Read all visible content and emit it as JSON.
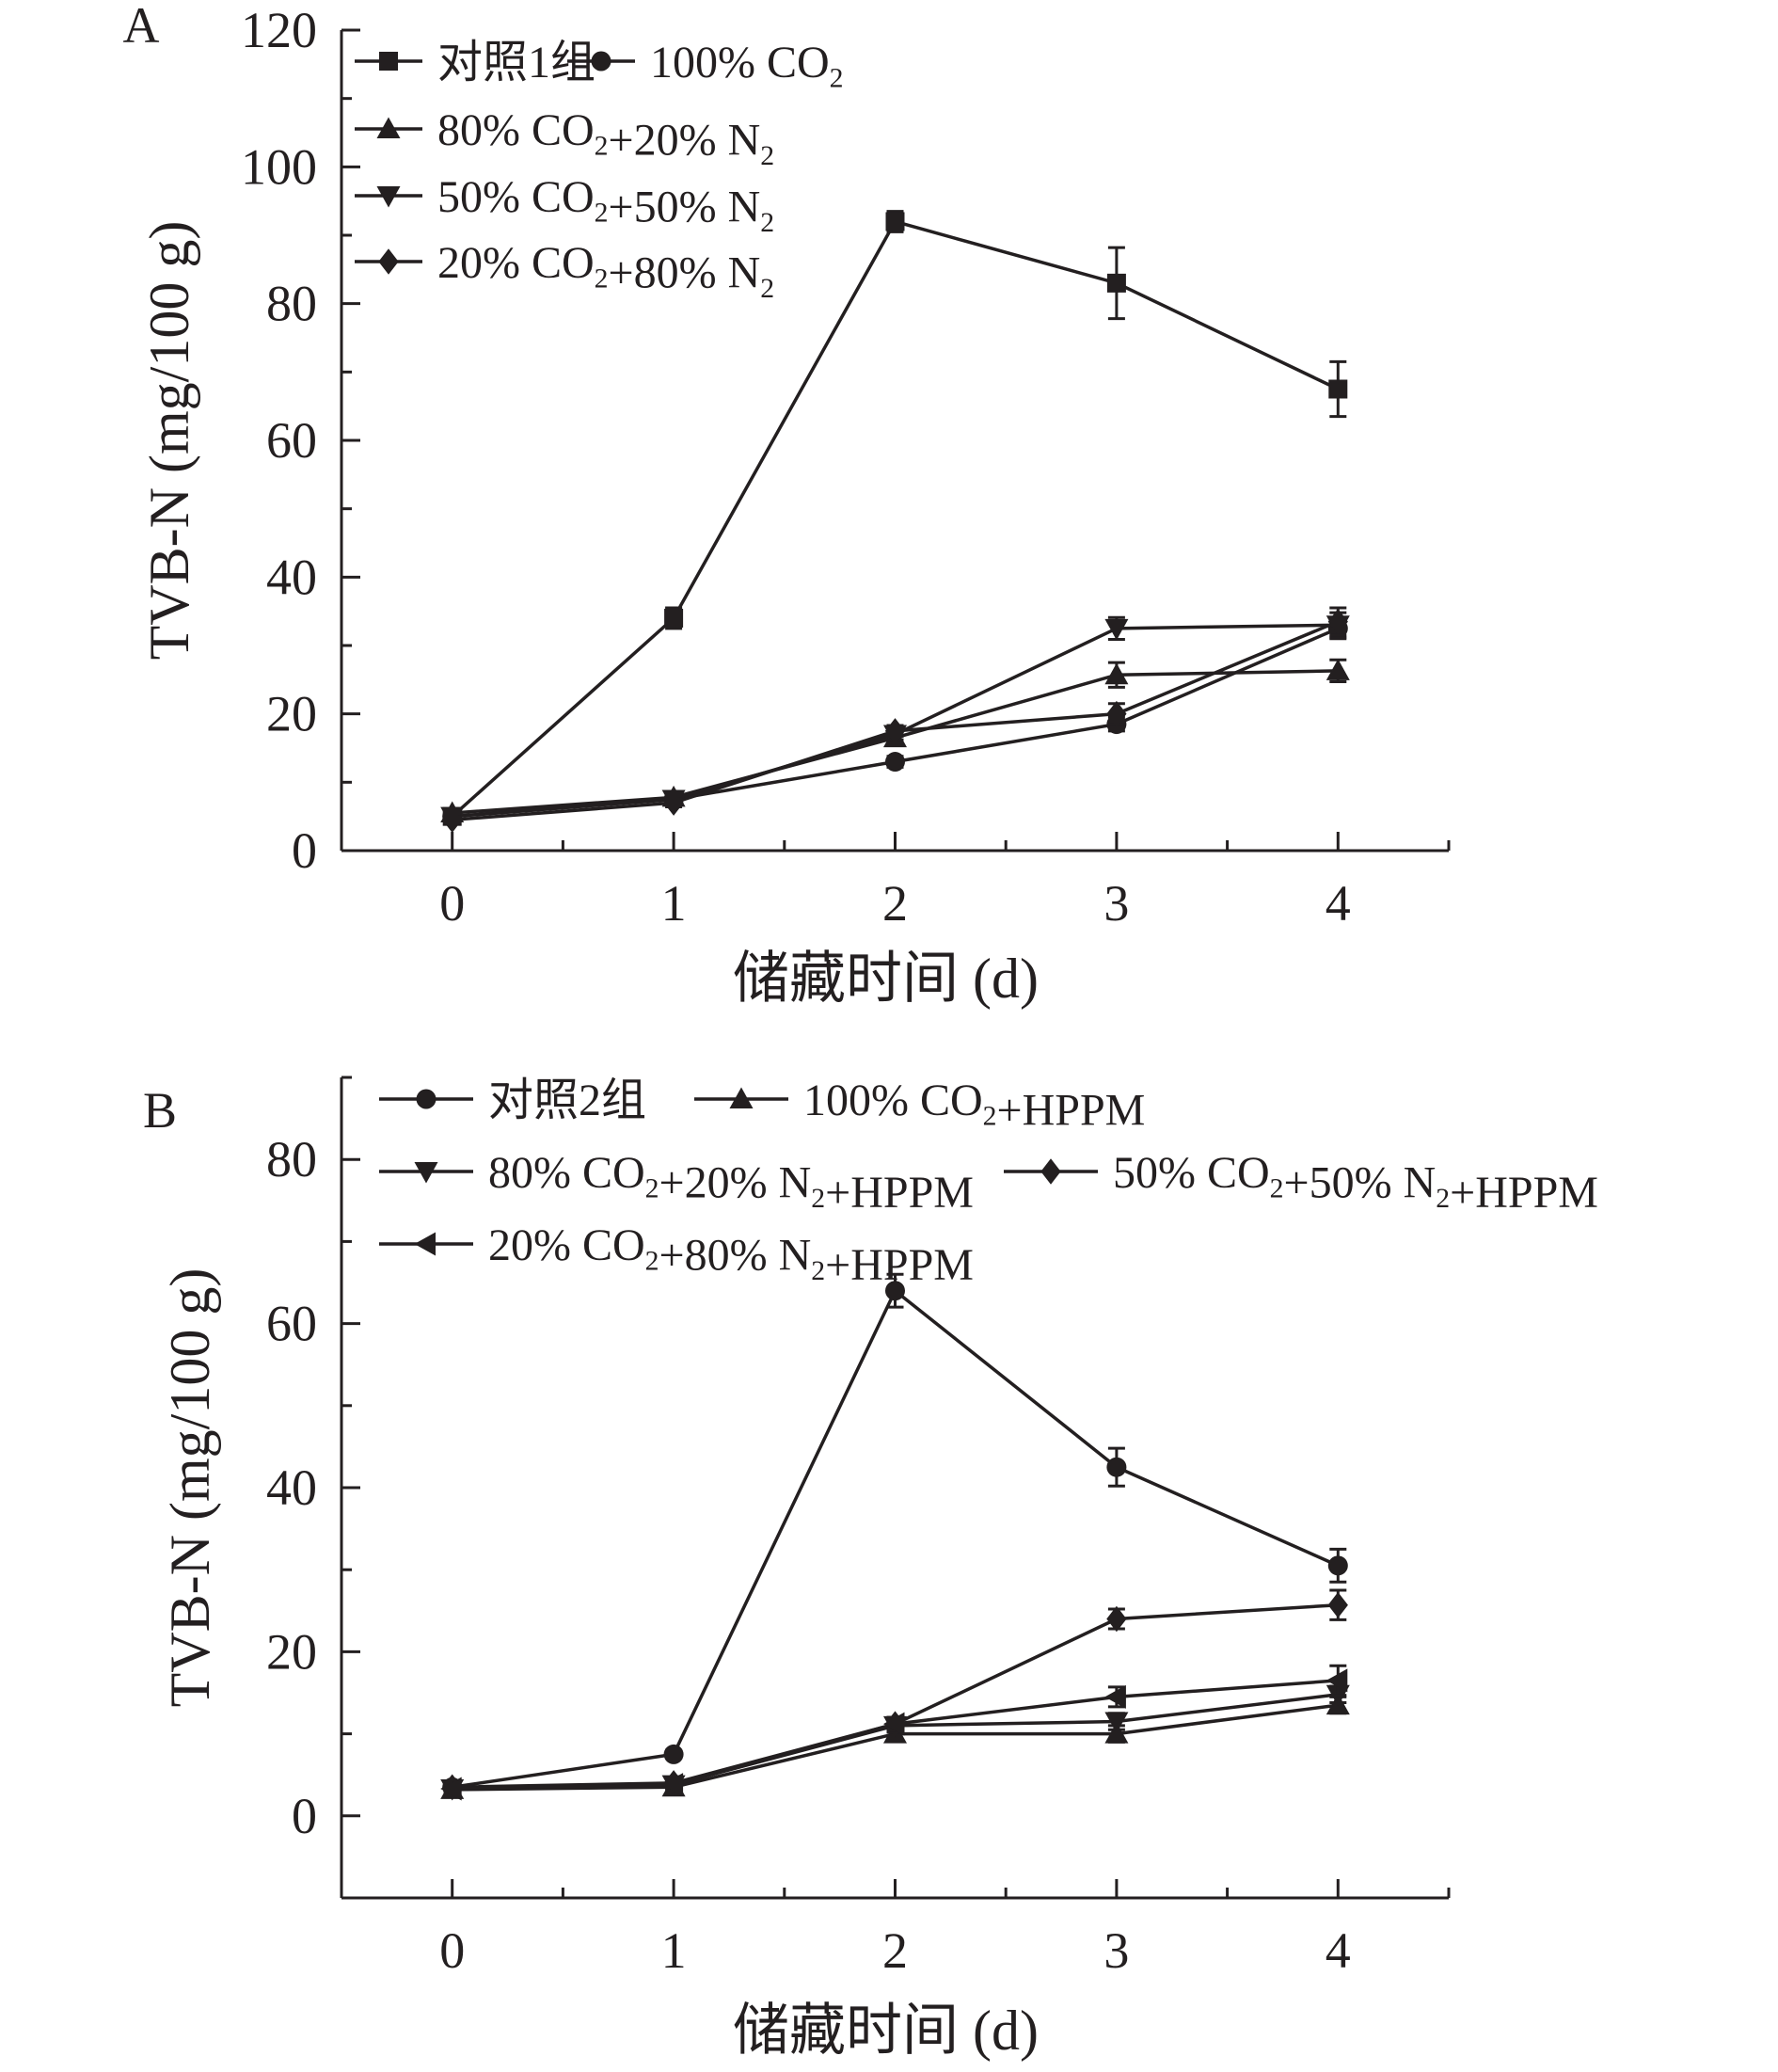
{
  "colors": {
    "ink": "#231f20",
    "background": "#ffffff"
  },
  "chart_data": [
    {
      "type": "line",
      "panel_label": "A",
      "xlabel": "储藏时间 (d)",
      "ylabel": "TVB-N (mg/100 g)",
      "x": [
        0,
        1,
        2,
        3,
        4
      ],
      "xticks": [
        0,
        1,
        2,
        3,
        4
      ],
      "xlim": [
        -0.5,
        4.5
      ],
      "ylim": [
        0,
        120
      ],
      "yticks": [
        0,
        20,
        40,
        60,
        80,
        100,
        120
      ],
      "grid": false,
      "legend_position": "top-left",
      "series": [
        {
          "name": "对照1组",
          "marker": "square",
          "values": [
            5.0,
            34.0,
            92.0,
            83.0,
            67.5
          ],
          "errors": [
            0.8,
            1.5,
            1.5,
            5.2,
            4.0
          ]
        },
        {
          "name": "100% CO₂",
          "marker": "circle",
          "values": [
            5.0,
            7.5,
            13.0,
            18.5,
            32.5
          ],
          "errors": [
            0.5,
            0.6,
            0.8,
            1.0,
            1.5
          ]
        },
        {
          "name": "80% CO₂+20% N₂",
          "marker": "triangle-up",
          "values": [
            5.5,
            7.8,
            16.5,
            25.7,
            26.3
          ],
          "errors": [
            0.5,
            0.6,
            0.8,
            1.8,
            1.6
          ]
        },
        {
          "name": "50% CO₂+50% N₂",
          "marker": "triangle-down",
          "values": [
            5.0,
            7.5,
            17.0,
            32.5,
            33.0
          ],
          "errors": [
            0.5,
            0.6,
            0.8,
            1.6,
            1.8
          ]
        },
        {
          "name": "20% CO₂+80% N₂",
          "marker": "diamond",
          "values": [
            4.5,
            7.0,
            17.5,
            20.0,
            33.5
          ],
          "errors": [
            0.5,
            0.6,
            0.8,
            1.5,
            2.0
          ]
        }
      ]
    },
    {
      "type": "line",
      "panel_label": "B",
      "xlabel": "储藏时间 (d)",
      "ylabel": "TVB-N (mg/100 g)",
      "x": [
        0,
        1,
        2,
        3,
        4
      ],
      "xticks": [
        0,
        1,
        2,
        3,
        4
      ],
      "xlim": [
        -0.5,
        4.5
      ],
      "ylim": [
        -10,
        90
      ],
      "yticks": [
        0,
        20,
        40,
        60,
        80
      ],
      "grid": false,
      "legend_position": "top-left",
      "series": [
        {
          "name": "对照2组",
          "marker": "circle",
          "values": [
            3.5,
            7.5,
            64.0,
            42.5,
            30.5
          ],
          "errors": [
            0.4,
            0.5,
            2.0,
            2.3,
            2.0
          ]
        },
        {
          "name": "100% CO₂+HPPM",
          "marker": "triangle-up",
          "values": [
            3.2,
            3.5,
            10.0,
            10.0,
            13.5
          ],
          "errors": [
            0.4,
            0.4,
            0.8,
            1.0,
            1.0
          ]
        },
        {
          "name": "80% CO₂+20% N₂+HPPM",
          "marker": "triangle-down",
          "values": [
            3.3,
            3.8,
            11.0,
            11.5,
            14.8
          ],
          "errors": [
            0.4,
            0.4,
            0.8,
            1.0,
            1.0
          ]
        },
        {
          "name": "50% CO₂+50% N₂+HPPM",
          "marker": "diamond",
          "values": [
            3.5,
            4.0,
            11.2,
            24.0,
            25.7
          ],
          "errors": [
            0.4,
            0.4,
            0.8,
            1.2,
            1.8
          ]
        },
        {
          "name": "20% CO₂+80% N₂+HPPM",
          "marker": "triangle-left",
          "values": [
            3.3,
            3.8,
            11.2,
            14.5,
            16.5
          ],
          "errors": [
            0.4,
            0.4,
            0.8,
            1.2,
            1.8
          ]
        }
      ]
    }
  ]
}
